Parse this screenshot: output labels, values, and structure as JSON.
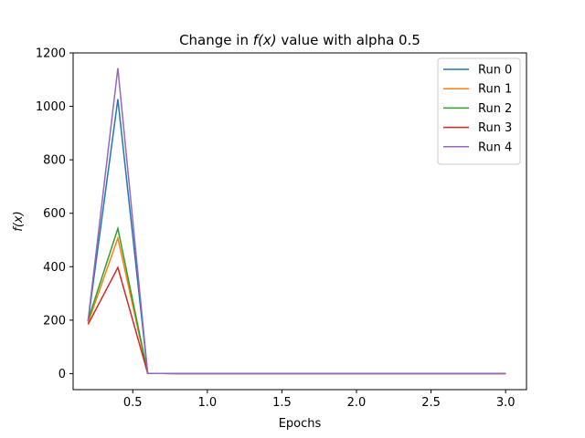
{
  "chart_data": {
    "type": "line",
    "title": "Change in f(x) value with alpha 0.5",
    "xlabel": "Epochs",
    "ylabel": "f(x)",
    "xlim": [
      0.1,
      3.14
    ],
    "ylim": [
      -60,
      1200
    ],
    "xticks": [
      0.5,
      1.0,
      1.5,
      2.0,
      2.5,
      3.0
    ],
    "xtick_labels": [
      "0.5",
      "1.0",
      "1.5",
      "2.0",
      "2.5",
      "3.0"
    ],
    "yticks": [
      0,
      200,
      400,
      600,
      800,
      1000,
      1200
    ],
    "ytick_labels": [
      "0",
      "200",
      "400",
      "600",
      "800",
      "1000",
      "1200"
    ],
    "grid": false,
    "legend_position": "top-right",
    "x": [
      0.2,
      0.4,
      0.6,
      0.8,
      1.0,
      1.2,
      1.4,
      1.6,
      1.8,
      2.0,
      2.2,
      2.4,
      2.6,
      2.8,
      3.0
    ],
    "series": [
      {
        "name": "Run 0",
        "color": "#1f77b4",
        "values": [
          195,
          1027,
          1,
          0,
          0,
          0,
          0,
          0,
          0,
          0,
          0,
          0,
          0,
          0,
          0
        ]
      },
      {
        "name": "Run 1",
        "color": "#ff7f0e",
        "values": [
          190,
          507,
          1,
          0,
          0,
          0,
          0,
          0,
          0,
          0,
          0,
          0,
          0,
          0,
          0
        ]
      },
      {
        "name": "Run 2",
        "color": "#2ca02c",
        "values": [
          200,
          543,
          1,
          0,
          0,
          0,
          0,
          0,
          0,
          0,
          0,
          0,
          0,
          0,
          0
        ]
      },
      {
        "name": "Run 3",
        "color": "#d62728",
        "values": [
          184,
          397,
          1,
          0,
          0,
          0,
          0,
          0,
          0,
          0,
          0,
          0,
          0,
          0,
          0
        ]
      },
      {
        "name": "Run 4",
        "color": "#9467bd",
        "values": [
          198,
          1143,
          1,
          0,
          0,
          0,
          0,
          0,
          0,
          0,
          0,
          0,
          0,
          0,
          0
        ]
      }
    ]
  }
}
